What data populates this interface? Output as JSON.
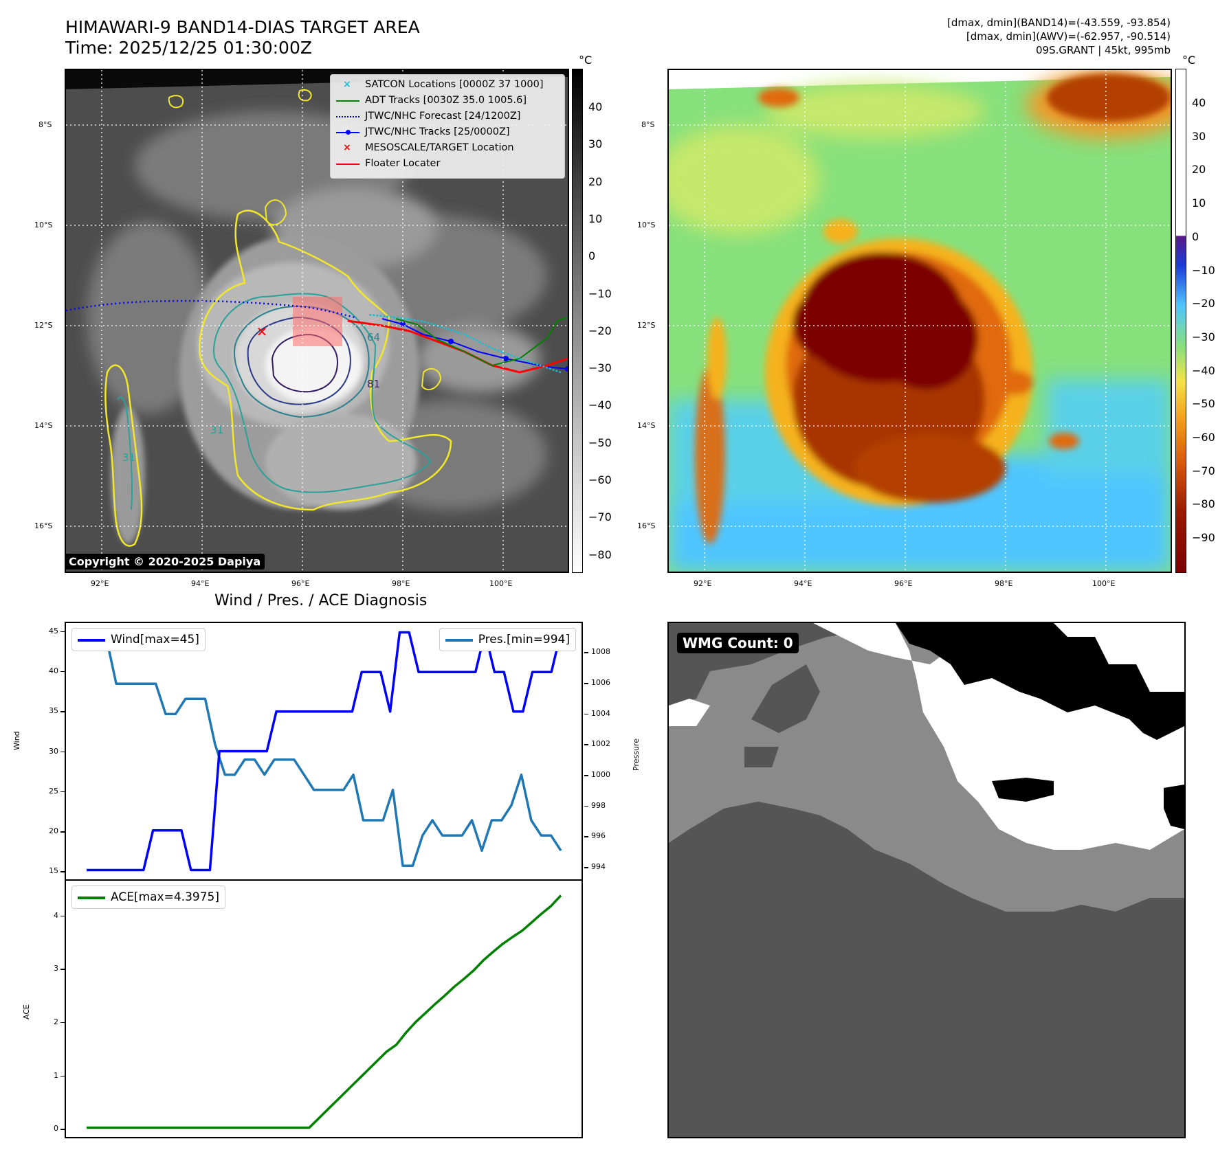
{
  "titles": {
    "main_title": "HIMAWARI-9 BAND14-DIAS TARGET AREA",
    "time": "Time: 2025/12/25 01:30:00Z",
    "band14_range": "[dmax, dmin](BAND14)=(-43.559, -93.854)",
    "awv_range": "[dmax, dmin](AWV)=(-62.957, -90.514)",
    "storm_info": "09S.GRANT | 45kt, 995mb",
    "diag_title": "Wind / Pres. / ACE Diagnosis"
  },
  "map": {
    "lon_ticks": [
      "92°E",
      "94°E",
      "96°E",
      "98°E",
      "100°E"
    ],
    "lat_ticks": [
      "8°S",
      "10°S",
      "12°S",
      "14°S",
      "16°S"
    ],
    "copyright": "Copyright © 2020-2025 Dapiya",
    "contour_labels": [
      "81",
      "64",
      "31",
      "31"
    ],
    "legend": [
      {
        "label": "SATCON Locations [0000Z 37 1000]",
        "color": "#17becf"
      },
      {
        "label": "ADT Tracks [0030Z 35.0 1005.6]",
        "color": "#008000"
      },
      {
        "label": "JTWC/NHC Forecast [24/1200Z]",
        "color": "#0000ff"
      },
      {
        "label": "JTWC/NHC Tracks [25/0000Z]",
        "color": "#0000ff"
      },
      {
        "label": "MESOSCALE/TARGET Location",
        "color": "#ff0000"
      },
      {
        "label": "Floater Locater",
        "color": "#ff0000"
      }
    ]
  },
  "colorbar_gray": {
    "unit": "°C",
    "labels": [
      "40",
      "30",
      "20",
      "10",
      "0",
      "−10",
      "−20",
      "−30",
      "−40",
      "−50",
      "−60",
      "−70",
      "−80"
    ]
  },
  "colorbar_awv": {
    "unit": "°C",
    "labels": [
      "40",
      "30",
      "20",
      "10",
      "0",
      "−10",
      "−20",
      "−30",
      "−40",
      "−50",
      "−60",
      "−70",
      "−80",
      "−90"
    ]
  },
  "wmg": {
    "count_label": "WMG Count: 0"
  },
  "colors": {
    "wind": "#0000ff",
    "pressure": "#1f77b4",
    "ace": "#008000",
    "track_cyan": "#17becf",
    "floater": "#ff0000"
  },
  "chart_data": [
    {
      "type": "line",
      "title": "Wind / Pres. / ACE Diagnosis",
      "ylabel": "Wind",
      "ylim": [
        14,
        46
      ],
      "yticks": [
        15,
        20,
        25,
        30,
        35,
        40,
        45
      ],
      "series": [
        {
          "name": "Wind[max=45]",
          "values": [
            15,
            15,
            15,
            15,
            15,
            15,
            15,
            20,
            20,
            20,
            20,
            15,
            15,
            15,
            30,
            30,
            30,
            30,
            30,
            30,
            35,
            35,
            35,
            35,
            35,
            35,
            35,
            35,
            35,
            40,
            40,
            40,
            35,
            45,
            45,
            40,
            40,
            40,
            40,
            40,
            40,
            40,
            45,
            40,
            40,
            35,
            35,
            40,
            40,
            40,
            45
          ]
        }
      ]
    },
    {
      "type": "line",
      "ylabel": "Pressure",
      "ylim": [
        993.2,
        1009.9
      ],
      "yticks": [
        994,
        996,
        998,
        1000,
        1002,
        1004,
        1006,
        1008
      ],
      "series": [
        {
          "name": "Pres.[min=994]",
          "values": [
            1009,
            1009,
            1009,
            1006,
            1006,
            1006,
            1006,
            1006,
            1004,
            1004,
            1005,
            1005,
            1005,
            1002,
            1000,
            1000,
            1001,
            1001,
            1000,
            1001,
            1001,
            1001,
            1000,
            999,
            999,
            999,
            999,
            1000,
            997,
            997,
            997,
            999,
            994,
            994,
            996,
            997,
            996,
            996,
            996,
            997,
            995,
            997,
            997,
            998,
            1000,
            997,
            996,
            996,
            995
          ]
        }
      ]
    },
    {
      "type": "line",
      "ylabel": "ACE",
      "ylim": [
        -0.15,
        4.65
      ],
      "yticks": [
        0,
        1,
        2,
        3,
        4
      ],
      "series": [
        {
          "name": "ACE[max=4.3975]",
          "values": [
            0,
            0,
            0,
            0,
            0,
            0,
            0,
            0,
            0,
            0,
            0,
            0,
            0,
            0,
            0,
            0,
            0,
            0,
            0,
            0,
            0,
            0,
            0,
            0,
            0.18,
            0.36,
            0.54,
            0.72,
            0.9,
            1.08,
            1.26,
            1.44,
            1.57,
            1.8,
            2.0,
            2.17,
            2.34,
            2.5,
            2.67,
            2.82,
            2.98,
            3.17,
            3.33,
            3.48,
            3.61,
            3.73,
            3.89,
            4.05,
            4.2,
            4.3975
          ]
        }
      ]
    }
  ]
}
